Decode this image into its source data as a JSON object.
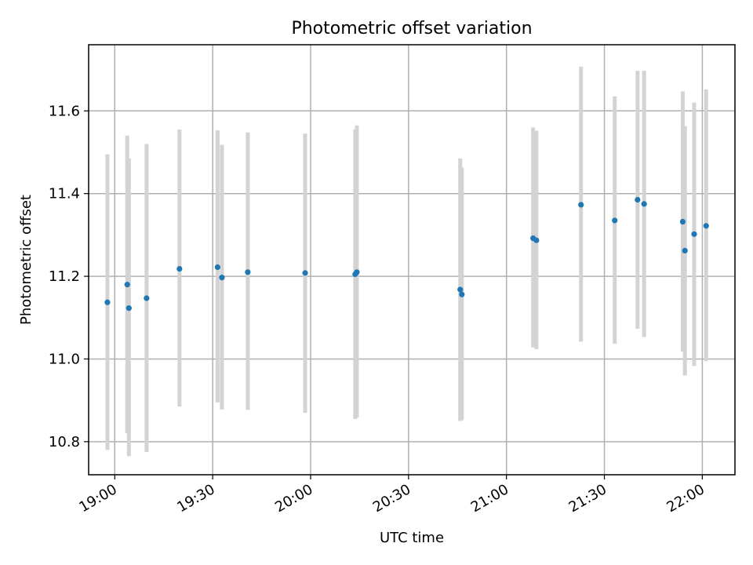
{
  "chart_data": {
    "type": "scatter",
    "title": "Photometric offset variation",
    "xlabel": "UTC time",
    "ylabel": "Photometric offset",
    "x_unit": "UTC clock time (HH:MM)",
    "xlim": [
      "18:52",
      "22:10"
    ],
    "ylim": [
      10.72,
      11.76
    ],
    "x_ticks": [
      "19:00",
      "19:30",
      "20:00",
      "20:30",
      "21:00",
      "21:30",
      "22:00"
    ],
    "y_ticks": [
      10.8,
      11.0,
      11.2,
      11.4,
      11.6
    ],
    "grid": true,
    "error_bar_color": "#d3d3d3",
    "marker_color": "#1f77b4",
    "series": [
      {
        "points": [
          {
            "x": "18:57:45",
            "y": 11.137,
            "ylow": 10.78,
            "yhigh": 11.495
          },
          {
            "x": "19:03:50",
            "y": 11.18,
            "ylow": 10.82,
            "yhigh": 11.54
          },
          {
            "x": "19:04:20",
            "y": 11.123,
            "ylow": 10.765,
            "yhigh": 11.485
          },
          {
            "x": "19:09:45",
            "y": 11.147,
            "ylow": 10.775,
            "yhigh": 11.52
          },
          {
            "x": "19:19:50",
            "y": 11.218,
            "ylow": 10.885,
            "yhigh": 11.555
          },
          {
            "x": "19:31:30",
            "y": 11.222,
            "ylow": 10.895,
            "yhigh": 11.553
          },
          {
            "x": "19:32:50",
            "y": 11.197,
            "ylow": 10.878,
            "yhigh": 11.518
          },
          {
            "x": "19:40:45",
            "y": 11.21,
            "ylow": 10.877,
            "yhigh": 11.548
          },
          {
            "x": "19:58:20",
            "y": 11.208,
            "ylow": 10.87,
            "yhigh": 11.545
          },
          {
            "x": "20:13:40",
            "y": 11.205,
            "ylow": 10.855,
            "yhigh": 11.555
          },
          {
            "x": "20:14:10",
            "y": 11.21,
            "ylow": 10.858,
            "yhigh": 11.565
          },
          {
            "x": "20:45:50",
            "y": 11.168,
            "ylow": 10.85,
            "yhigh": 11.485
          },
          {
            "x": "20:46:20",
            "y": 11.156,
            "ylow": 10.852,
            "yhigh": 11.463
          },
          {
            "x": "21:08:10",
            "y": 11.292,
            "ylow": 11.028,
            "yhigh": 11.56
          },
          {
            "x": "21:09:10",
            "y": 11.287,
            "ylow": 11.024,
            "yhigh": 11.552
          },
          {
            "x": "21:22:50",
            "y": 11.373,
            "ylow": 11.042,
            "yhigh": 11.707
          },
          {
            "x": "21:33:10",
            "y": 11.335,
            "ylow": 11.037,
            "yhigh": 11.635
          },
          {
            "x": "21:40:10",
            "y": 11.385,
            "ylow": 11.073,
            "yhigh": 11.697
          },
          {
            "x": "21:42:10",
            "y": 11.375,
            "ylow": 11.053,
            "yhigh": 11.697
          },
          {
            "x": "21:54:00",
            "y": 11.332,
            "ylow": 11.018,
            "yhigh": 11.647
          },
          {
            "x": "21:54:40",
            "y": 11.262,
            "ylow": 10.96,
            "yhigh": 11.563
          },
          {
            "x": "21:57:30",
            "y": 11.302,
            "ylow": 10.983,
            "yhigh": 11.62
          },
          {
            "x": "22:01:10",
            "y": 11.322,
            "ylow": 10.995,
            "yhigh": 11.652
          }
        ]
      }
    ]
  }
}
